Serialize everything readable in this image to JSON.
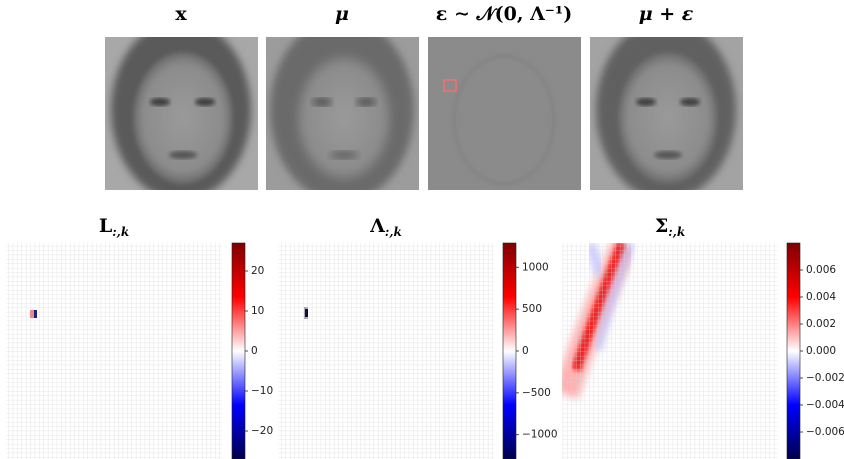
{
  "top_panels": [
    {
      "title": "x"
    },
    {
      "title": "μ"
    },
    {
      "title": "ε ∼ 𝒩(0, Λ⁻¹)"
    },
    {
      "title": "μ + ε"
    }
  ],
  "heatmaps": [
    {
      "title": {
        "main": "L",
        "sub": ":,k"
      },
      "clim": [
        -27,
        27
      ],
      "ticks": [
        {
          "value": -20,
          "label": "−20"
        },
        {
          "value": -10,
          "label": "−10"
        },
        0,
        10,
        20
      ]
    },
    {
      "title": {
        "main": "Λ",
        "sub": ":,k"
      },
      "clim": [
        -1290,
        1290
      ],
      "ticks": [
        {
          "value": -1000,
          "label": "−1000"
        },
        {
          "value": -500,
          "label": "−500"
        },
        0,
        500,
        1000
      ]
    },
    {
      "title": {
        "main": "Σ",
        "sub": ":,k"
      },
      "clim": [
        -0.008,
        0.008
      ],
      "ticks": [
        {
          "value": -0.006,
          "label": "−0.006"
        },
        {
          "value": -0.004,
          "label": "−0.004"
        },
        {
          "value": -0.002,
          "label": "−0.002"
        },
        {
          "value": 0,
          "label": "0.000"
        },
        {
          "value": 0.002,
          "label": "0.002"
        },
        {
          "value": 0.004,
          "label": "0.004"
        },
        {
          "value": 0.006,
          "label": "0.006"
        }
      ]
    }
  ]
}
